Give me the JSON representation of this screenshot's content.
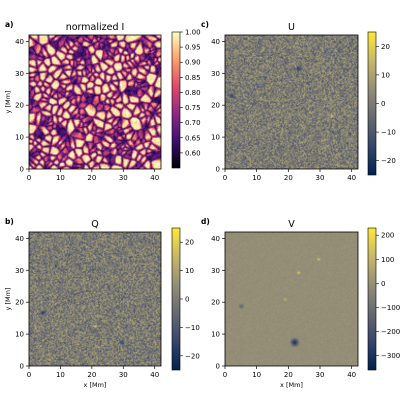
{
  "chart_data": [
    {
      "type": "heatmap",
      "panel_label": "a)",
      "title": "normalized I",
      "xlabel": "",
      "ylabel": "y [Mm]",
      "xlim": [
        0,
        42
      ],
      "ylim": [
        0,
        42
      ],
      "xticks": [
        "0",
        "10",
        "20",
        "30",
        "40"
      ],
      "yticks": [
        "0",
        "10",
        "20",
        "30",
        "40"
      ],
      "colormap": "magma",
      "colorbar": {
        "min": 0.55,
        "max": 1.0,
        "ticks": [
          "0.60",
          "0.65",
          "0.70",
          "0.75",
          "0.80",
          "0.85",
          "0.90",
          "0.95",
          "1.00"
        ]
      }
    },
    {
      "type": "heatmap",
      "panel_label": "c)",
      "title": "U",
      "xlabel": "",
      "ylabel": "",
      "xlim": [
        0,
        42
      ],
      "ylim": [
        0,
        42
      ],
      "xticks": [
        "0",
        "10",
        "20",
        "30",
        "40"
      ],
      "yticks": [
        "0",
        "10",
        "20",
        "30",
        "40"
      ],
      "colormap": "cividis",
      "colorbar": {
        "min": -25,
        "max": 25,
        "ticks": [
          "−20",
          "−10",
          "0",
          "10",
          "20"
        ]
      }
    },
    {
      "type": "heatmap",
      "panel_label": "b)",
      "title": "Q",
      "xlabel": "x [Mm]",
      "ylabel": "y [Mm]",
      "xlim": [
        0,
        42
      ],
      "ylim": [
        0,
        42
      ],
      "xticks": [
        "0",
        "10",
        "20",
        "30",
        "40"
      ],
      "yticks": [
        "0",
        "10",
        "20",
        "30",
        "40"
      ],
      "colormap": "cividis",
      "colorbar": {
        "min": -25,
        "max": 25,
        "ticks": [
          "−20",
          "−10",
          "0",
          "10",
          "20"
        ]
      }
    },
    {
      "type": "heatmap",
      "panel_label": "d)",
      "title": "V",
      "xlabel": "x [Mm]",
      "ylabel": "",
      "xlim": [
        0,
        42
      ],
      "ylim": [
        0,
        42
      ],
      "xticks": [
        "0",
        "10",
        "20",
        "30",
        "40"
      ],
      "yticks": [
        "0",
        "10",
        "20",
        "30",
        "40"
      ],
      "colormap": "cividis",
      "colorbar": {
        "min": -360,
        "max": 230,
        "ticks": [
          "200",
          "100",
          "0",
          "−100",
          "−200",
          "−300"
        ]
      }
    }
  ]
}
